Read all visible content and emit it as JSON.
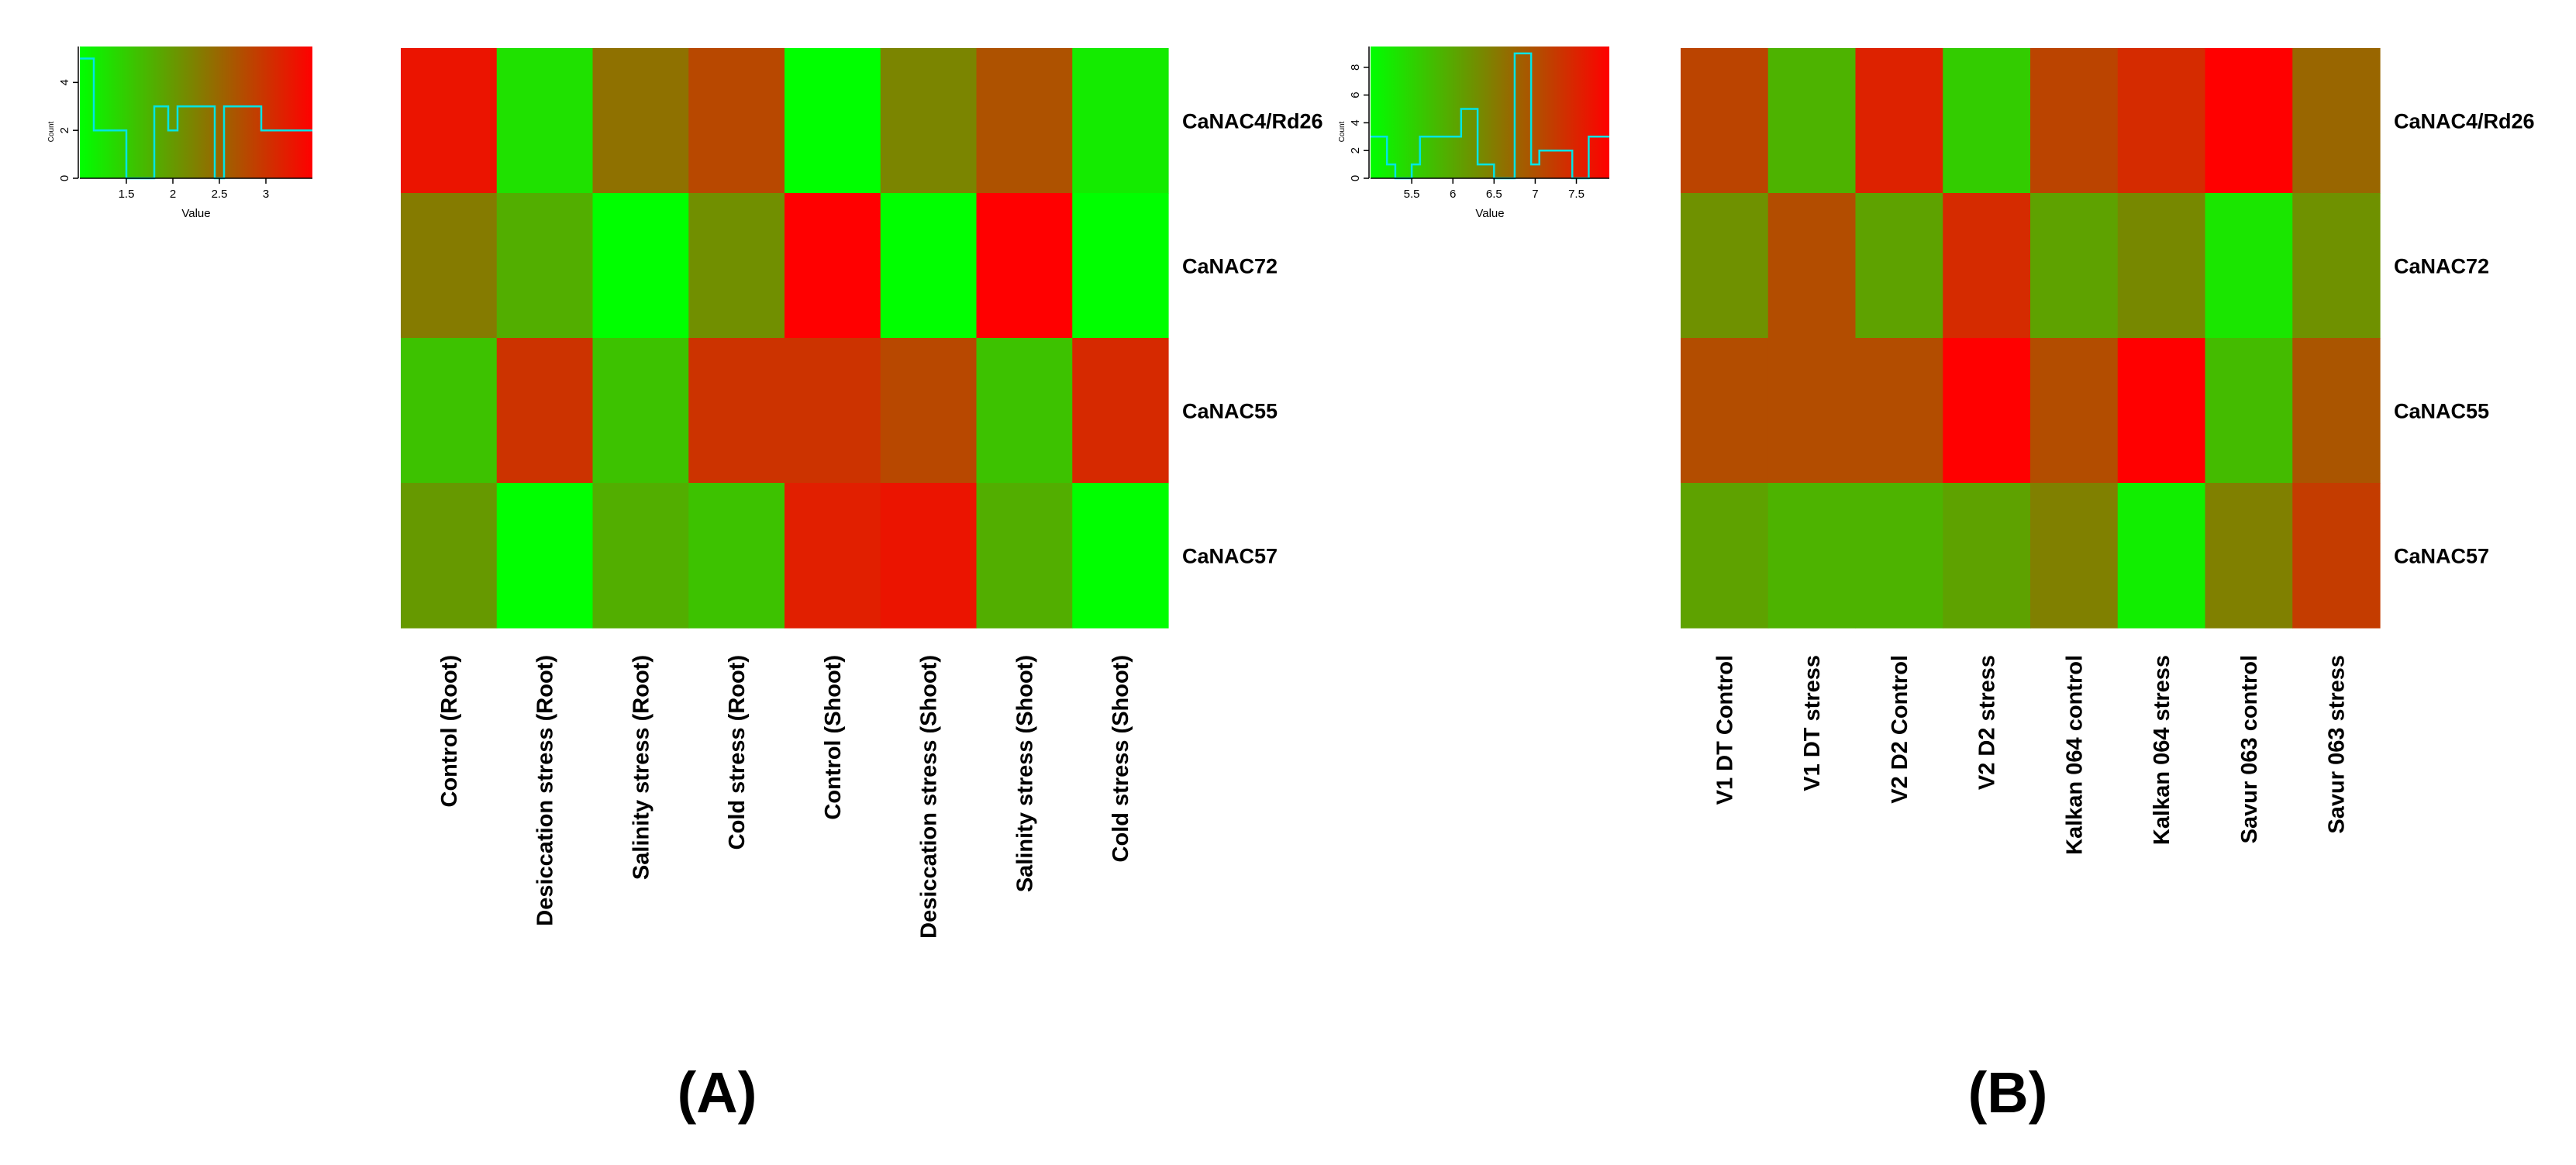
{
  "figure_labels": [
    "(A)",
    "(B)"
  ],
  "colors": {
    "low": "#00ff00",
    "high": "#ff0000",
    "histogram_line": "#00e5e5",
    "text": "#000000"
  },
  "chart_data": [
    {
      "type": "heatmap",
      "panel": "A",
      "title": "",
      "rows": [
        "CaNAC4/Rd26",
        "CaNAC72",
        "CaNAC55",
        "CaNAC57"
      ],
      "columns": [
        "Control (Root)",
        "Desiccation stress (Root)",
        "Salinity stress (Root)",
        "Cold stress (Root)",
        "Control (Shoot)",
        "Desiccation stress (Shoot)",
        "Salinity stress (Shoot)",
        "Cold stress (Shoot)"
      ],
      "values": [
        [
          3.3,
          1.3,
          2.4,
          2.8,
          1.0,
          2.2,
          2.7,
          1.2
        ],
        [
          2.3,
          1.8,
          1.0,
          2.1,
          3.5,
          1.0,
          3.5,
          1.0
        ],
        [
          1.6,
          3.0,
          1.6,
          3.0,
          3.0,
          2.8,
          1.6,
          3.1
        ],
        [
          2.0,
          1.0,
          1.8,
          1.6,
          3.2,
          3.3,
          1.8,
          1.0
        ]
      ],
      "value_range": [
        1.0,
        3.5
      ],
      "color_key": {
        "xlabel": "Value",
        "ylabel": "Count",
        "x_ticks": [
          "1.5",
          "2",
          "2.5",
          "3"
        ],
        "y_ticks": [
          "0",
          "2",
          "4"
        ],
        "xlim": [
          1.0,
          3.5
        ],
        "ylim": [
          0,
          5.5
        ],
        "histogram": {
          "bin_edges": [
            1.0,
            1.15,
            1.5,
            1.8,
            1.95,
            2.05,
            2.45,
            2.55,
            2.95,
            3.5
          ],
          "counts": [
            5,
            2,
            0,
            3,
            2,
            3,
            0,
            3,
            2
          ]
        }
      }
    },
    {
      "type": "heatmap",
      "panel": "B",
      "title": "",
      "rows": [
        "CaNAC4/Rd26",
        "CaNAC72",
        "CaNAC55",
        "CaNAC57"
      ],
      "columns": [
        "V1 DT Control",
        "V1 DT stress",
        "V2 D2 Control",
        "V2 D2 stress",
        "Kalkan 064 control",
        "Kalkan 064 stress",
        "Savur 063 control",
        "Savur 063 stress"
      ],
      "values": [
        [
          7.2,
          5.9,
          7.6,
          5.6,
          7.2,
          7.5,
          8.0,
          6.8
        ],
        [
          6.3,
          7.1,
          6.1,
          7.5,
          6.1,
          6.4,
          5.3,
          6.3
        ],
        [
          7.1,
          7.1,
          7.1,
          8.0,
          7.1,
          8.0,
          5.8,
          7.0
        ],
        [
          6.1,
          5.9,
          5.9,
          6.1,
          6.5,
          5.2,
          6.5,
          7.3
        ]
      ],
      "value_range": [
        5.0,
        8.0
      ],
      "color_key": {
        "xlabel": "Value",
        "ylabel": "Count",
        "x_ticks": [
          "5.5",
          "6",
          "6.5",
          "7",
          "7.5"
        ],
        "y_ticks": [
          "0",
          "2",
          "4",
          "6",
          "8"
        ],
        "xlim": [
          5.0,
          7.9
        ],
        "ylim": [
          0,
          9.5
        ],
        "histogram": {
          "bin_edges": [
            5.0,
            5.2,
            5.3,
            5.5,
            5.6,
            6.1,
            6.3,
            6.5,
            6.75,
            6.95,
            7.05,
            7.45,
            7.65,
            7.9
          ],
          "counts": [
            3,
            1,
            0,
            1,
            3,
            5,
            1,
            0,
            9,
            1,
            2,
            0,
            3
          ]
        }
      }
    }
  ]
}
